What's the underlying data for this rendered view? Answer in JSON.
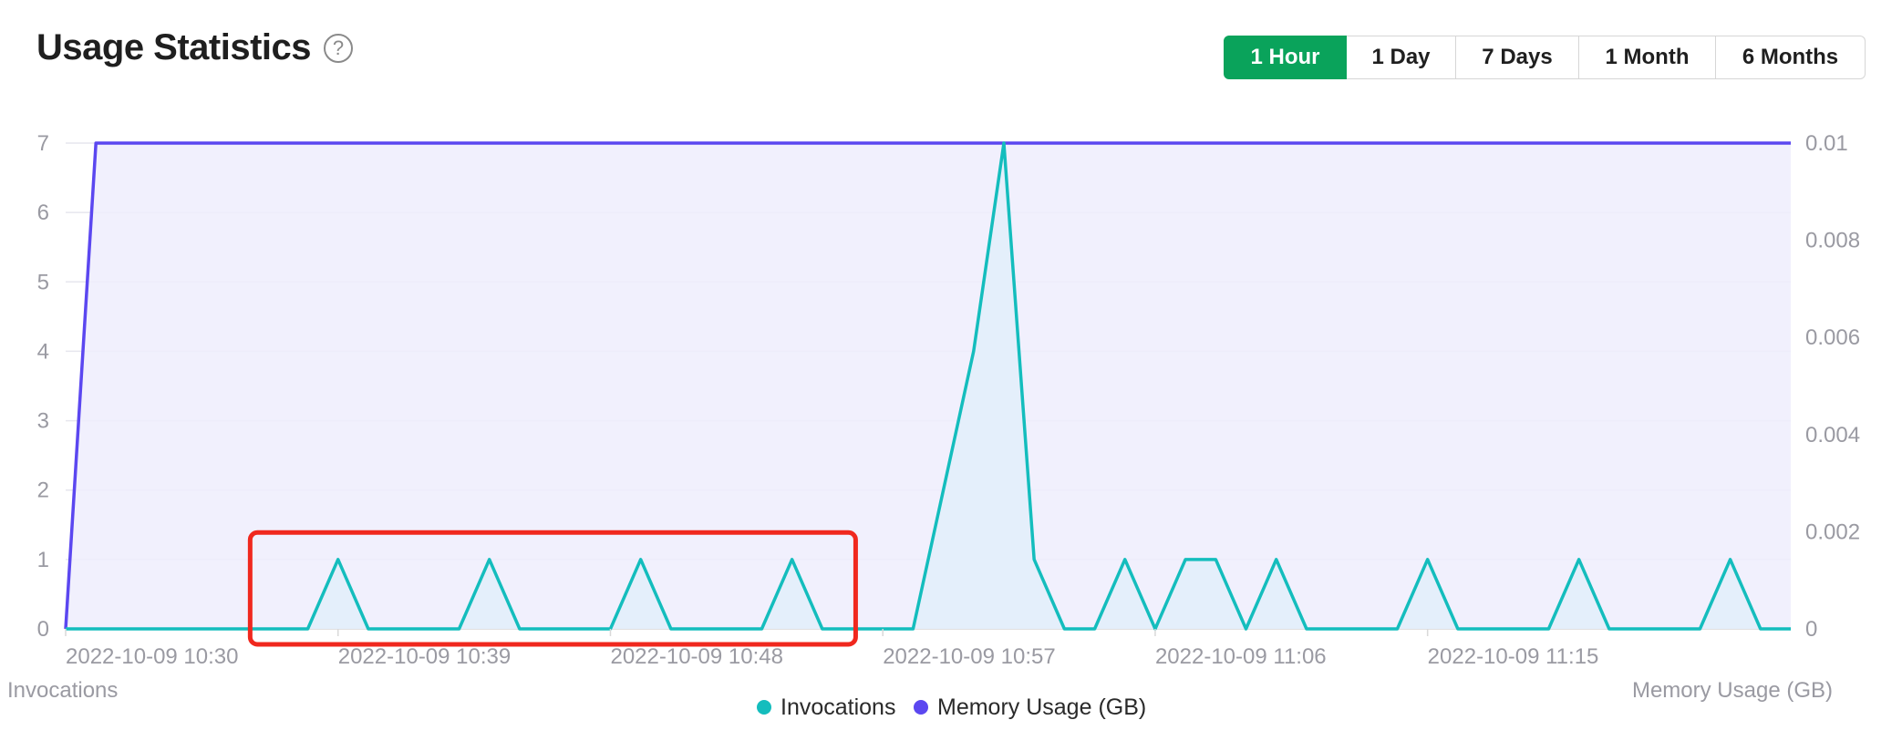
{
  "header": {
    "title": "Usage Statistics",
    "help_icon": "question-circle-icon"
  },
  "time_ranges": {
    "selected": "1 Hour",
    "options": [
      "1 Hour",
      "1 Day",
      "7 Days",
      "1 Month",
      "6 Months"
    ]
  },
  "colors": {
    "accent": "#0aa35b",
    "invocations": "#14bdbd",
    "memory": "#5b47f0",
    "highlight_box": "#f0281e"
  },
  "chart_data": {
    "type": "line",
    "left_axis_label": "Invocations",
    "right_axis_label": "Memory Usage (GB)",
    "left_ylim": [
      0,
      7
    ],
    "right_ylim": [
      0,
      0.01
    ],
    "left_ticks": [
      "0",
      "1",
      "2",
      "3",
      "4",
      "5",
      "6",
      "7"
    ],
    "right_ticks": [
      "0",
      "0.002",
      "0.004",
      "0.006",
      "0.008",
      "0.01"
    ],
    "x_tick_labels": [
      "2022-10-09 10:30",
      "2022-10-09 10:39",
      "2022-10-09 10:48",
      "2022-10-09 10:57",
      "2022-10-09 11:06",
      "2022-10-09 11:15"
    ],
    "x_range_minutes": [
      0,
      57
    ],
    "series": [
      {
        "name": "Invocations",
        "axis": "left",
        "values": [
          0,
          0,
          0,
          0,
          0,
          0,
          0,
          0,
          0,
          1,
          0,
          0,
          0,
          0,
          1,
          0,
          0,
          0,
          0,
          1,
          0,
          0,
          0,
          0,
          1,
          0,
          0,
          0,
          0,
          2,
          4,
          7,
          1,
          0,
          0,
          1,
          0,
          1,
          1,
          0,
          1,
          0,
          0,
          0,
          0,
          1,
          0,
          0,
          0,
          0,
          1,
          0,
          0,
          0,
          0,
          1,
          0,
          0
        ]
      },
      {
        "name": "Memory Usage (GB)",
        "axis": "right",
        "values": [
          0,
          0.01,
          0.01,
          0.01,
          0.01,
          0.01,
          0.01,
          0.01,
          0.01,
          0.01,
          0.01,
          0.01,
          0.01,
          0.01,
          0.01,
          0.01,
          0.01,
          0.01,
          0.01,
          0.01,
          0.01,
          0.01,
          0.01,
          0.01,
          0.01,
          0.01,
          0.01,
          0.01,
          0.01,
          0.01,
          0.01,
          0.01,
          0.01,
          0.01,
          0.01,
          0.01,
          0.01,
          0.01,
          0.01,
          0.01,
          0.01,
          0.01,
          0.01,
          0.01,
          0.01,
          0.01,
          0.01,
          0.01,
          0.01,
          0.01,
          0.01,
          0.01,
          0.01,
          0.01,
          0.01,
          0.01,
          0.01,
          0.01
        ]
      }
    ],
    "legend": {
      "placement": "bottom-center"
    },
    "grid": true,
    "annotation": {
      "type": "highlight-box",
      "x_start_minute": 7,
      "x_end_minute": 25.5,
      "y_from": 0,
      "y_to": 1.1
    }
  }
}
